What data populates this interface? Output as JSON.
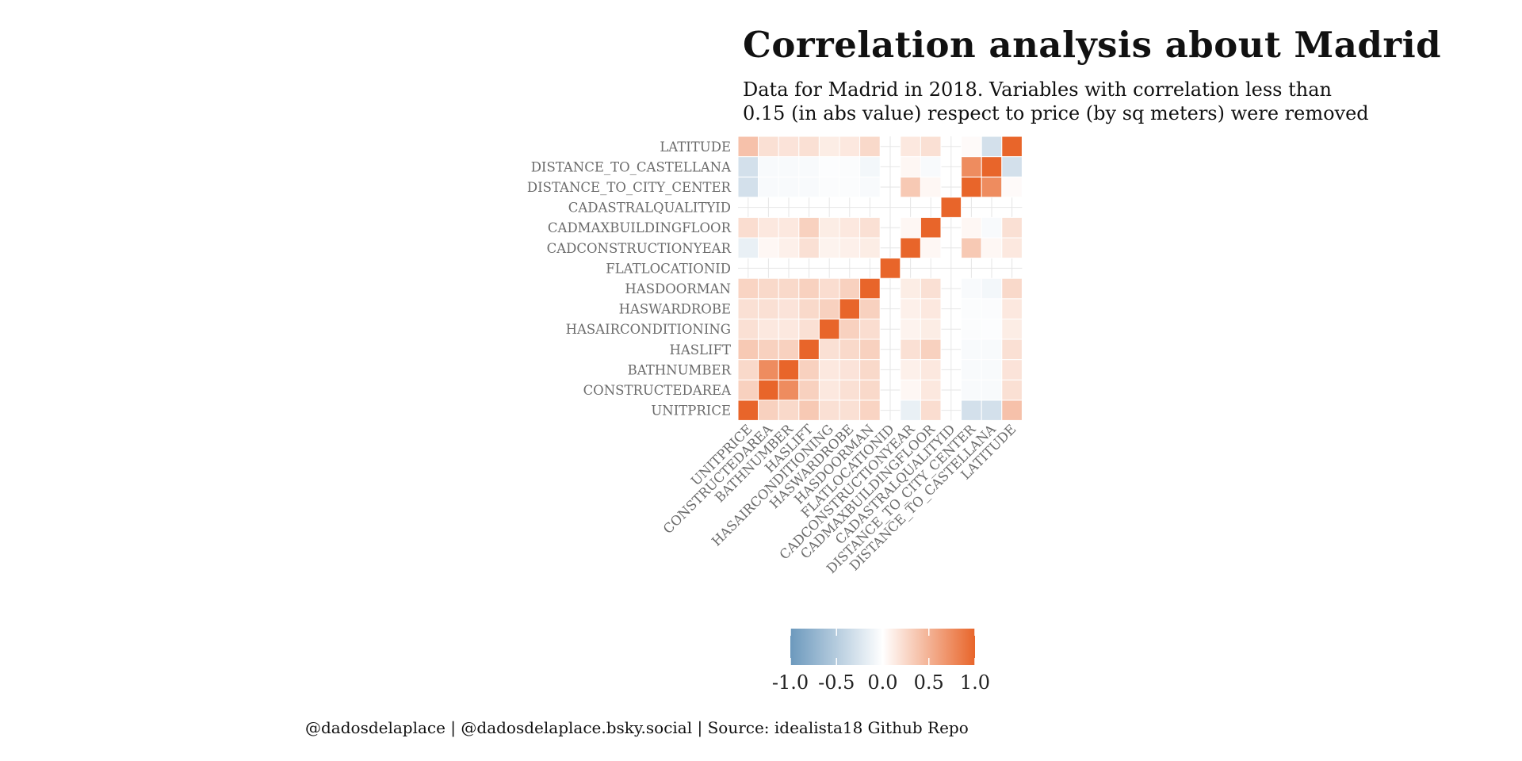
{
  "chart_data": {
    "type": "heatmap",
    "title": "Correlation analysis about Madrid",
    "subtitle_lines": [
      "Data for Madrid in 2018. Variables with correlation less than",
      "0.15 (in abs value) respect to price (by sq meters) were removed"
    ],
    "caption": "@dadosdelaplace | @dadosdelaplace.bsky.social | Source: idealista18 Github Repo",
    "variables": [
      "UNITPRICE",
      "CONSTRUCTEDAREA",
      "BATHNUMBER",
      "HASLIFT",
      "HASAIRCONDITIONING",
      "HASWARDROBE",
      "HASDOORMAN",
      "FLATLOCATIONID",
      "CADCONSTRUCTIONYEAR",
      "CADMAXBUILDINGFLOOR",
      "CADASTRALQUALITYID",
      "DISTANCE_TO_CITY_CENTER",
      "DISTANCE_TO_CASTELLANA",
      "LATITUDE"
    ],
    "matrix": [
      [
        1.0,
        0.3,
        0.25,
        0.35,
        0.2,
        0.2,
        0.28,
        null,
        -0.15,
        0.22,
        null,
        -0.3,
        -0.3,
        0.4
      ],
      [
        0.3,
        1.0,
        0.75,
        0.3,
        0.15,
        0.2,
        0.25,
        null,
        0.05,
        0.15,
        null,
        -0.05,
        -0.05,
        0.2
      ],
      [
        0.25,
        0.75,
        1.0,
        0.3,
        0.15,
        0.18,
        0.25,
        null,
        0.1,
        0.15,
        null,
        -0.05,
        -0.05,
        0.18
      ],
      [
        0.35,
        0.3,
        0.3,
        1.0,
        0.2,
        0.25,
        0.3,
        null,
        0.2,
        0.3,
        null,
        -0.05,
        -0.05,
        0.2
      ],
      [
        0.2,
        0.15,
        0.15,
        0.2,
        1.0,
        0.3,
        0.22,
        null,
        0.08,
        0.12,
        null,
        -0.03,
        -0.02,
        0.12
      ],
      [
        0.2,
        0.2,
        0.18,
        0.25,
        0.3,
        1.0,
        0.3,
        null,
        0.1,
        0.15,
        null,
        -0.03,
        -0.03,
        0.15
      ],
      [
        0.28,
        0.25,
        0.25,
        0.3,
        0.22,
        0.3,
        1.0,
        null,
        0.12,
        0.2,
        null,
        -0.05,
        -0.08,
        0.25
      ],
      [
        null,
        null,
        null,
        null,
        null,
        null,
        null,
        1.0,
        null,
        null,
        null,
        null,
        null,
        null
      ],
      [
        -0.15,
        0.05,
        0.1,
        0.2,
        0.08,
        0.1,
        0.12,
        null,
        1.0,
        0.05,
        null,
        0.35,
        0.05,
        0.15
      ],
      [
        0.22,
        0.15,
        0.15,
        0.3,
        0.12,
        0.15,
        0.2,
        null,
        0.05,
        1.0,
        null,
        0.05,
        -0.05,
        0.2
      ],
      [
        null,
        null,
        null,
        null,
        null,
        null,
        null,
        null,
        null,
        null,
        1.0,
        null,
        null,
        null
      ],
      [
        -0.3,
        -0.05,
        -0.05,
        -0.05,
        -0.03,
        -0.03,
        -0.05,
        null,
        0.35,
        0.05,
        null,
        1.0,
        0.75,
        0.03
      ],
      [
        -0.3,
        -0.05,
        -0.05,
        -0.05,
        -0.02,
        -0.03,
        -0.08,
        null,
        0.05,
        -0.05,
        null,
        0.75,
        1.0,
        -0.3
      ],
      [
        0.4,
        0.2,
        0.18,
        0.2,
        0.12,
        0.15,
        0.25,
        null,
        0.15,
        0.2,
        null,
        0.03,
        -0.3,
        1.0
      ]
    ],
    "color_scale": {
      "low": "#6c99bd",
      "mid": "#ffffff",
      "high": "#e8652a",
      "limits": [
        -1,
        1
      ]
    },
    "legend": {
      "position": "bottom",
      "ticks": [
        "-1.0",
        "-0.5",
        "0.0",
        "0.5",
        "1.0"
      ],
      "values": [
        -1,
        -0.5,
        0,
        0.5,
        1
      ]
    },
    "grid": true
  }
}
